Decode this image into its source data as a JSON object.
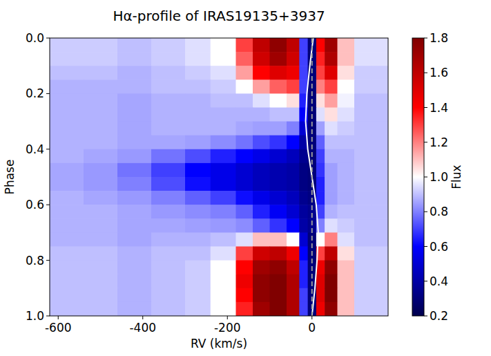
{
  "chart_data": {
    "type": "heatmap",
    "title": "Hα-profile of IRAS19135+3937",
    "x_label": "RV (km/s)",
    "y_label": "Phase",
    "xlim": [
      -620,
      180
    ],
    "ylim": [
      0,
      1
    ],
    "xticks": [
      -600,
      -400,
      -200,
      0
    ],
    "yticks": [
      {
        "value": 0,
        "label": "0.0"
      },
      0.2,
      0.4,
      0.6,
      0.8,
      {
        "value": 1,
        "label": "1.0"
      }
    ],
    "x_edges": [
      -620,
      -540,
      -460,
      -380,
      -300,
      -240,
      -180,
      -140,
      -100,
      -60,
      -30,
      -10,
      10,
      30,
      60,
      100,
      140,
      180
    ],
    "y_edges": [
      0,
      0.05,
      0.1,
      0.15,
      0.2,
      0.25,
      0.3,
      0.35,
      0.4,
      0.45,
      0.5,
      0.55,
      0.6,
      0.65,
      0.7,
      0.75,
      0.8,
      0.85,
      0.9,
      0.95,
      1
    ],
    "cells": [
      [
        0.92,
        0.92,
        0.9,
        0.92,
        0.95,
        1.0,
        1.3,
        1.6,
        1.75,
        1.6,
        0.7,
        0.3,
        1.4,
        1.7,
        1.1,
        0.95,
        0.95
      ],
      [
        0.92,
        0.92,
        0.9,
        0.92,
        0.95,
        1.0,
        1.25,
        1.55,
        1.7,
        1.55,
        0.7,
        0.3,
        1.35,
        1.65,
        1.1,
        0.95,
        0.95
      ],
      [
        0.9,
        0.9,
        0.88,
        0.9,
        0.92,
        0.95,
        1.15,
        1.4,
        1.5,
        1.45,
        0.7,
        0.3,
        1.3,
        1.5,
        1.05,
        0.92,
        0.92
      ],
      [
        0.88,
        0.88,
        0.88,
        0.9,
        0.9,
        0.92,
        1.0,
        1.15,
        1.25,
        1.3,
        0.7,
        0.3,
        1.2,
        1.3,
        1.0,
        0.92,
        0.92
      ],
      [
        0.88,
        0.88,
        0.86,
        0.88,
        0.88,
        0.9,
        0.9,
        0.95,
        1.0,
        1.05,
        0.65,
        0.3,
        1.05,
        1.15,
        0.98,
        0.9,
        0.9
      ],
      [
        0.88,
        0.88,
        0.86,
        0.88,
        0.88,
        0.88,
        0.88,
        0.88,
        0.9,
        0.9,
        0.6,
        0.3,
        0.95,
        1.05,
        0.95,
        0.9,
        0.9
      ],
      [
        0.88,
        0.88,
        0.86,
        0.88,
        0.88,
        0.88,
        0.86,
        0.85,
        0.85,
        0.8,
        0.5,
        0.3,
        0.85,
        0.95,
        0.92,
        0.9,
        0.9
      ],
      [
        0.88,
        0.88,
        0.86,
        0.86,
        0.85,
        0.82,
        0.78,
        0.72,
        0.68,
        0.6,
        0.4,
        0.3,
        0.75,
        0.9,
        0.9,
        0.9,
        0.9
      ],
      [
        0.88,
        0.86,
        0.84,
        0.78,
        0.72,
        0.65,
        0.6,
        0.55,
        0.5,
        0.45,
        0.35,
        0.3,
        0.7,
        0.88,
        0.88,
        0.9,
        0.9
      ],
      [
        0.86,
        0.84,
        0.78,
        0.7,
        0.6,
        0.55,
        0.5,
        0.45,
        0.42,
        0.4,
        0.32,
        0.3,
        0.68,
        0.85,
        0.88,
        0.9,
        0.9
      ],
      [
        0.86,
        0.84,
        0.8,
        0.72,
        0.62,
        0.55,
        0.5,
        0.45,
        0.42,
        0.4,
        0.32,
        0.3,
        0.65,
        0.85,
        0.88,
        0.9,
        0.9
      ],
      [
        0.88,
        0.86,
        0.84,
        0.8,
        0.75,
        0.7,
        0.62,
        0.55,
        0.5,
        0.45,
        0.35,
        0.32,
        0.65,
        0.85,
        0.88,
        0.9,
        0.9
      ],
      [
        0.88,
        0.88,
        0.86,
        0.84,
        0.82,
        0.8,
        0.75,
        0.65,
        0.58,
        0.5,
        0.38,
        0.35,
        0.7,
        0.88,
        0.9,
        0.9,
        0.9
      ],
      [
        0.88,
        0.88,
        0.86,
        0.86,
        0.85,
        0.84,
        0.82,
        0.75,
        0.68,
        0.6,
        0.4,
        0.35,
        0.8,
        0.95,
        0.92,
        0.9,
        0.9
      ],
      [
        0.88,
        0.88,
        0.86,
        0.88,
        0.88,
        0.9,
        0.95,
        1.1,
        1.1,
        1.0,
        0.5,
        0.3,
        1.0,
        1.2,
        0.95,
        0.9,
        0.9
      ],
      [
        0.9,
        0.9,
        0.88,
        0.9,
        0.9,
        0.95,
        1.3,
        1.55,
        1.6,
        1.45,
        0.6,
        0.3,
        1.3,
        1.6,
        1.05,
        0.92,
        0.92
      ],
      [
        0.9,
        0.9,
        0.88,
        0.9,
        0.92,
        1.0,
        1.4,
        1.7,
        1.75,
        1.6,
        0.65,
        0.3,
        1.45,
        1.75,
        1.1,
        0.92,
        0.92
      ],
      [
        0.9,
        0.9,
        0.88,
        0.9,
        0.92,
        1.0,
        1.45,
        1.75,
        1.8,
        1.65,
        0.65,
        0.3,
        1.5,
        1.8,
        1.1,
        0.92,
        0.92
      ],
      [
        0.9,
        0.9,
        0.88,
        0.9,
        0.92,
        1.0,
        1.4,
        1.75,
        1.8,
        1.65,
        0.7,
        0.3,
        1.5,
        1.8,
        1.1,
        0.92,
        0.92
      ],
      [
        0.9,
        0.9,
        0.88,
        0.9,
        0.92,
        1.0,
        1.35,
        1.7,
        1.8,
        1.65,
        0.7,
        0.3,
        1.45,
        1.75,
        1.1,
        0.92,
        0.92
      ]
    ],
    "colorbar": {
      "label": "Flux",
      "range": [
        0.2,
        1.8
      ],
      "ticks": [
        0.2,
        0.4,
        0.6,
        0.8,
        {
          "value": 1,
          "label": "1.0"
        },
        1.2,
        1.4,
        1.6,
        1.8
      ]
    },
    "series": [
      {
        "type": "line",
        "color": "#ffffff",
        "line_style": "solid",
        "x": [
          3,
          -5,
          -12,
          -15,
          -10,
          0,
          10,
          15,
          12,
          7,
          0
        ],
        "y": [
          0,
          0.1,
          0.2,
          0.3,
          0.4,
          0.5,
          0.6,
          0.7,
          0.8,
          0.9,
          1
        ]
      },
      {
        "type": "line",
        "color": "#999999",
        "line_style": "dashed",
        "x": [
          0,
          0
        ],
        "y": [
          0,
          1
        ]
      }
    ]
  }
}
